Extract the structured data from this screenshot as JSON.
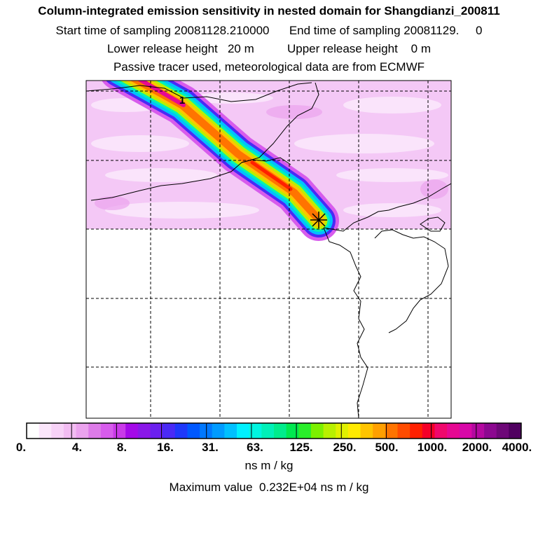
{
  "header": {
    "title": "Column-integrated emission sensitivity in nested domain for Shangdianzi_200811",
    "line2": "Start time of sampling 20081128.210000      End time of sampling 20081129.     0",
    "line3": "Lower release height   20 m          Upper release height    0 m",
    "line4": "Passive tracer used, meteorological data are from ECMWF"
  },
  "chart_data": {
    "type": "heatmap",
    "title": "Column-integrated emission sensitivity in nested domain for Shangdianzi_200811",
    "release_site_marker": "star",
    "contour_label": "1",
    "plume": "narrow band from the release star toward the north-west corner, peak values 500-2000",
    "colorbar": {
      "tick_labels": [
        "0.",
        "4.",
        "8.",
        "16.",
        "31.",
        "63.",
        "125.",
        "250.",
        "500.",
        "1000.",
        "2000.",
        "4000."
      ],
      "levels": [
        0,
        4,
        8,
        16,
        31,
        63,
        125,
        250,
        500,
        1000,
        2000,
        4000
      ],
      "colors": [
        "#ffffff",
        "#fbe6fb",
        "#f7d2f7",
        "#f2bcf2",
        "#eba3ee",
        "#dd7be8",
        "#d75cec",
        "#c93ae8",
        "#a40ae8",
        "#8a18e8",
        "#6b20ee",
        "#4a2af5",
        "#1f38fa",
        "#0058ff",
        "#0078ff",
        "#009bff",
        "#00c0ff",
        "#00f0ff",
        "#00f5e0",
        "#00f0b8",
        "#00ec8c",
        "#00e850",
        "#2aee2a",
        "#7cf000",
        "#b8f000",
        "#e0f000",
        "#ffea00",
        "#ffc400",
        "#ffa000",
        "#ff7400",
        "#ff4c00",
        "#ff2000",
        "#f50028",
        "#f0086c",
        "#e60892",
        "#d808a8",
        "#b408a0",
        "#8c0890",
        "#6e0878",
        "#500060"
      ],
      "unit": "ns m / kg"
    },
    "max_value_text": "Maximum value  0.232E+04 ns m / kg",
    "max_value": 2320
  }
}
